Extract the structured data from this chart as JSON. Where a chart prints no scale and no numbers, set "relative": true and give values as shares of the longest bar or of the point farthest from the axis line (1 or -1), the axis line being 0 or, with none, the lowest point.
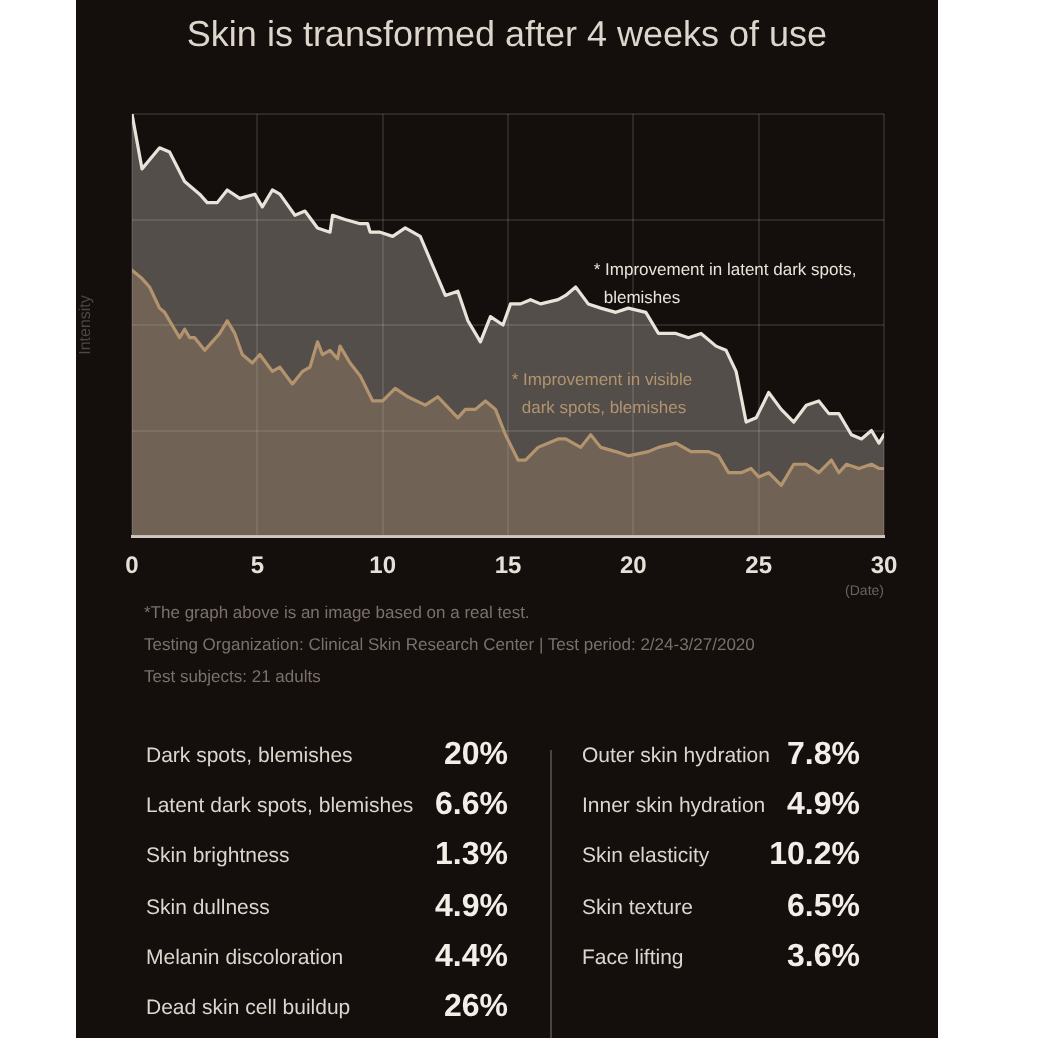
{
  "chart_data": [
    {
      "type": "area",
      "title": "Skin is transformed after 4 weeks of use",
      "xlabel": "(Date)",
      "ylabel": "Intensity",
      "relative": true,
      "xlim": [
        0,
        30
      ],
      "xticks": [
        0,
        5,
        10,
        15,
        20,
        25,
        30
      ],
      "grid": true,
      "marker": "none",
      "line_style": "solid",
      "series": [
        {
          "name": "* Improvement in latent dark spots, blemishes",
          "color": "#e9e3da",
          "x": [
            0,
            0.4,
            1.1,
            1.5,
            2.1,
            2.7,
            3.0,
            3.4,
            3.8,
            4.3,
            4.9,
            5.2,
            5.6,
            5.9,
            6.5,
            6.9,
            7.4,
            7.9,
            8.0,
            8.5,
            9.1,
            9.4,
            9.5,
            9.9,
            10.4,
            10.9,
            11.5,
            12.0,
            12.5,
            13.0,
            13.4,
            13.7,
            13.9,
            14.3,
            14.8,
            15.1,
            15.5,
            15.9,
            16.3,
            17.0,
            17.3,
            17.7,
            18.2,
            18.7,
            19.3,
            19.8,
            20.5,
            21.0,
            21.7,
            22.2,
            22.7,
            23.3,
            23.7,
            24.1,
            24.5,
            24.9,
            25.4,
            25.9,
            26.4,
            26.9,
            27.4,
            27.8,
            28.2,
            28.7,
            29.1,
            29.5,
            29.8,
            30
          ],
          "values": [
            1,
            0.87,
            0.92,
            0.91,
            0.84,
            0.81,
            0.79,
            0.79,
            0.82,
            0.8,
            0.81,
            0.78,
            0.82,
            0.81,
            0.76,
            0.77,
            0.73,
            0.72,
            0.76,
            0.75,
            0.74,
            0.74,
            0.72,
            0.72,
            0.71,
            0.73,
            0.71,
            0.64,
            0.57,
            0.58,
            0.51,
            0.48,
            0.46,
            0.52,
            0.5,
            0.55,
            0.55,
            0.56,
            0.55,
            0.56,
            0.57,
            0.59,
            0.55,
            0.54,
            0.53,
            0.54,
            0.53,
            0.48,
            0.48,
            0.47,
            0.48,
            0.45,
            0.44,
            0.39,
            0.27,
            0.28,
            0.34,
            0.3,
            0.27,
            0.31,
            0.32,
            0.29,
            0.29,
            0.24,
            0.23,
            0.25,
            0.22,
            0.24
          ]
        },
        {
          "name": "* Improvement in visible dark spots, blemishes",
          "color": "#b3946f",
          "x": [
            0,
            0.4,
            0.7,
            1.1,
            1.3,
            1.7,
            1.9,
            2.1,
            2.3,
            2.5,
            2.9,
            3.2,
            3.5,
            3.8,
            4.1,
            4.4,
            4.8,
            5.1,
            5.6,
            5.9,
            6.4,
            6.8,
            7.1,
            7.4,
            7.6,
            7.9,
            8.2,
            8.3,
            8.7,
            9.1,
            9.6,
            10.0,
            10.5,
            11.0,
            11.7,
            12.2,
            13.0,
            13.3,
            13.7,
            14.1,
            14.5,
            14.9,
            15.4,
            15.7,
            16.2,
            17.0,
            17.3,
            17.9,
            18.3,
            18.7,
            19.3,
            19.8,
            20.6,
            21.0,
            21.7,
            22.3,
            23.0,
            23.4,
            23.8,
            24.3,
            24.7,
            25.0,
            25.4,
            25.9,
            26.4,
            26.9,
            27.4,
            27.9,
            28.2,
            28.5,
            29.0,
            29.5,
            29.8,
            30
          ],
          "values": [
            0.63,
            0.61,
            0.59,
            0.54,
            0.53,
            0.49,
            0.47,
            0.49,
            0.47,
            0.47,
            0.44,
            0.46,
            0.48,
            0.51,
            0.48,
            0.43,
            0.41,
            0.43,
            0.39,
            0.4,
            0.36,
            0.39,
            0.4,
            0.46,
            0.43,
            0.44,
            0.42,
            0.45,
            0.41,
            0.38,
            0.32,
            0.32,
            0.35,
            0.33,
            0.31,
            0.33,
            0.28,
            0.3,
            0.3,
            0.32,
            0.3,
            0.24,
            0.18,
            0.18,
            0.21,
            0.23,
            0.23,
            0.21,
            0.24,
            0.21,
            0.2,
            0.19,
            0.2,
            0.21,
            0.22,
            0.2,
            0.2,
            0.19,
            0.15,
            0.15,
            0.16,
            0.14,
            0.15,
            0.12,
            0.17,
            0.17,
            0.15,
            0.18,
            0.15,
            0.17,
            0.16,
            0.17,
            0.16,
            0.16
          ]
        }
      ],
      "annotations": [
        "*The graph above is an image based on a real test.",
        "Testing Organization: Clinical Skin Research Center | Test period: 2/24-3/27/2020",
        "Test subjects: 21 adults"
      ]
    },
    {
      "type": "other",
      "annotations": [
        "Dark spots, blemishes",
        "20%",
        "Latent dark spots, blemishes",
        "6.6%",
        "Skin brightness",
        "1.3%",
        "Skin dullness",
        "4.9%",
        "Melanin discoloration",
        "4.4%",
        "Dead skin cell buildup",
        "26%",
        "Outer skin hydration",
        "7.8%",
        "Inner skin hydration",
        "4.9%",
        "Skin elasticity",
        "10.2%",
        "Skin texture",
        "6.5%",
        "Face lifting",
        "3.6%"
      ]
    }
  ]
}
